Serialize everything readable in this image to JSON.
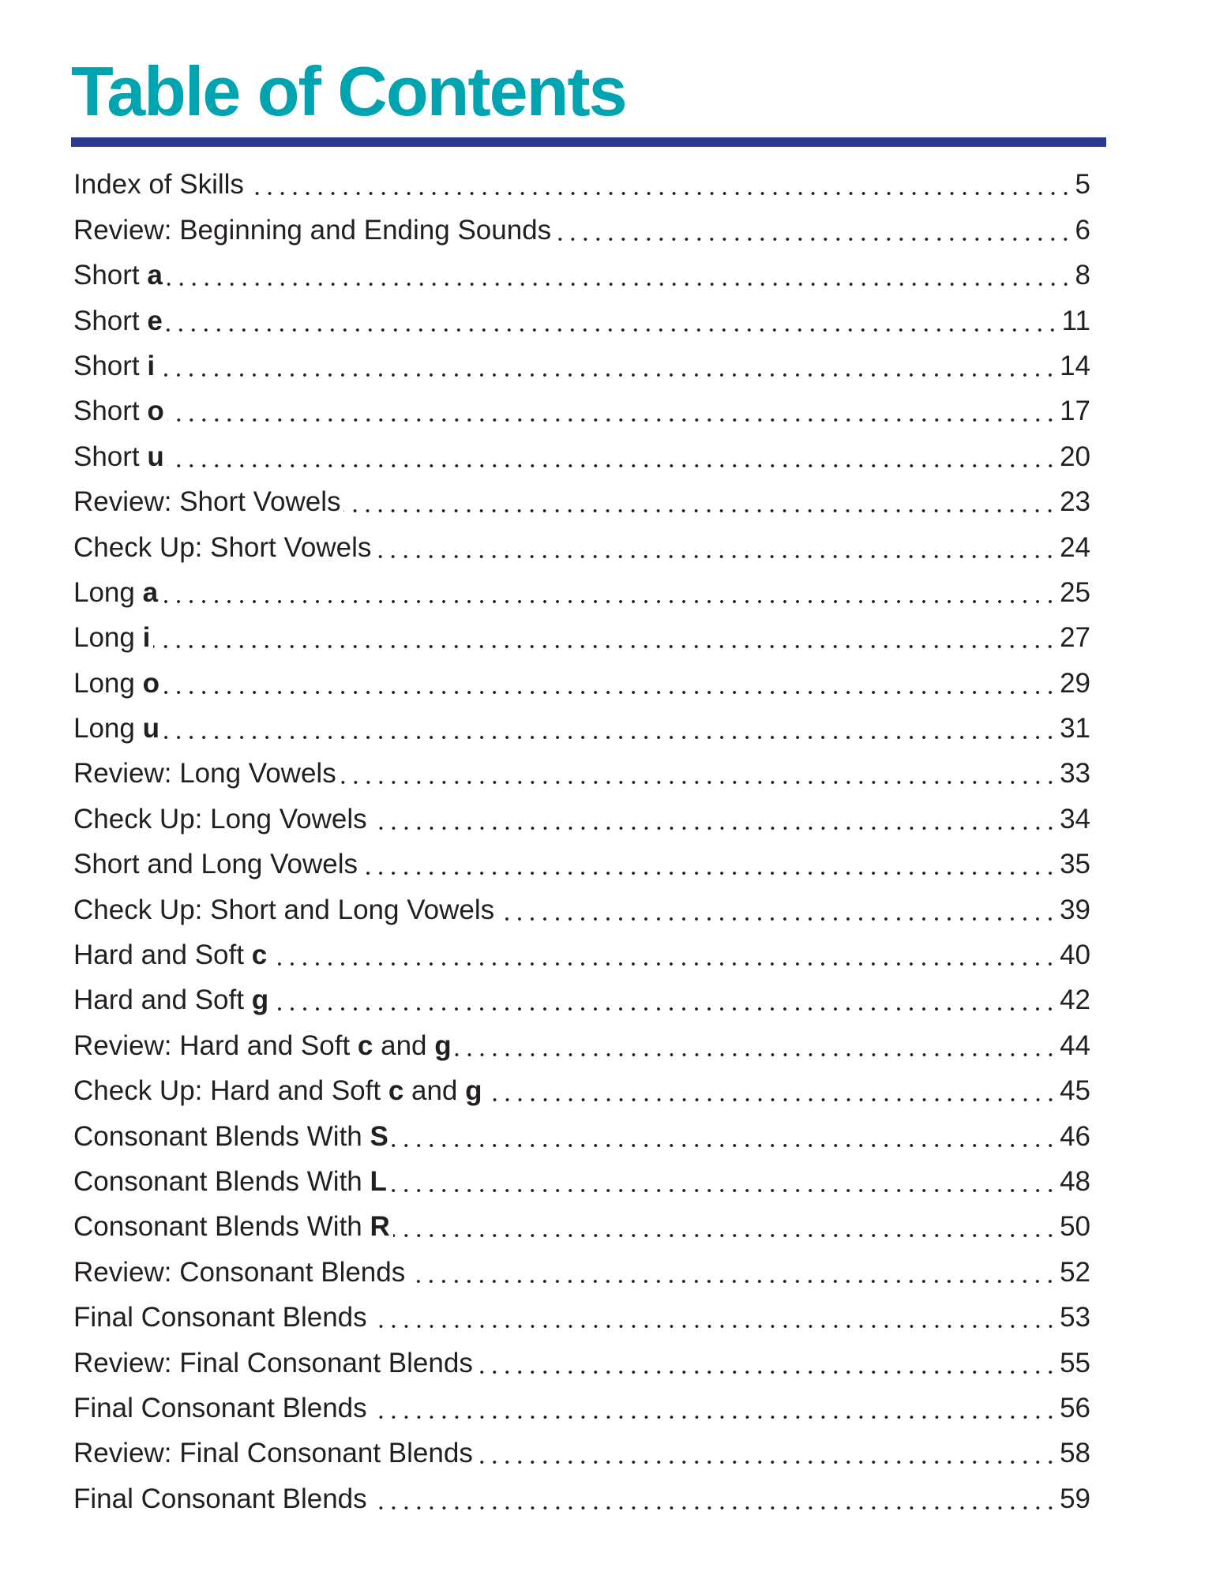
{
  "title": "Table of Contents",
  "colors": {
    "title": "#00a3b0",
    "rule": "#2b3990",
    "text": "#231f20"
  },
  "entries": [
    {
      "parts": [
        {
          "text": "Index of Skills"
        }
      ],
      "page": "5"
    },
    {
      "parts": [
        {
          "text": "Review: Beginning and Ending Sounds"
        }
      ],
      "page": "6"
    },
    {
      "parts": [
        {
          "text": "Short "
        },
        {
          "text": "a",
          "bold": true
        }
      ],
      "page": "8"
    },
    {
      "parts": [
        {
          "text": "Short "
        },
        {
          "text": "e",
          "bold": true
        }
      ],
      "page": "11"
    },
    {
      "parts": [
        {
          "text": "Short "
        },
        {
          "text": "i",
          "bold": true
        }
      ],
      "page": "14"
    },
    {
      "parts": [
        {
          "text": "Short "
        },
        {
          "text": "o",
          "bold": true
        }
      ],
      "page": "17"
    },
    {
      "parts": [
        {
          "text": "Short "
        },
        {
          "text": "u",
          "bold": true
        }
      ],
      "page": "20"
    },
    {
      "parts": [
        {
          "text": "Review: Short Vowels"
        }
      ],
      "page": "23"
    },
    {
      "parts": [
        {
          "text": "Check Up: Short Vowels"
        }
      ],
      "page": "24"
    },
    {
      "parts": [
        {
          "text": "Long "
        },
        {
          "text": "a",
          "bold": true
        }
      ],
      "page": "25"
    },
    {
      "parts": [
        {
          "text": "Long "
        },
        {
          "text": "i",
          "bold": true
        }
      ],
      "page": "27"
    },
    {
      "parts": [
        {
          "text": "Long "
        },
        {
          "text": "o",
          "bold": true
        }
      ],
      "page": "29"
    },
    {
      "parts": [
        {
          "text": "Long "
        },
        {
          "text": "u",
          "bold": true
        }
      ],
      "page": "31"
    },
    {
      "parts": [
        {
          "text": "Review: Long Vowels"
        }
      ],
      "page": "33"
    },
    {
      "parts": [
        {
          "text": "Check Up: Long Vowels"
        }
      ],
      "page": "34"
    },
    {
      "parts": [
        {
          "text": "Short and Long Vowels"
        }
      ],
      "page": "35"
    },
    {
      "parts": [
        {
          "text": "Check Up: Short and Long Vowels"
        }
      ],
      "page": "39"
    },
    {
      "parts": [
        {
          "text": "Hard and Soft "
        },
        {
          "text": "c",
          "bold": true
        }
      ],
      "page": "40"
    },
    {
      "parts": [
        {
          "text": "Hard and Soft "
        },
        {
          "text": "g",
          "bold": true
        }
      ],
      "page": "42"
    },
    {
      "parts": [
        {
          "text": "Review: Hard and Soft "
        },
        {
          "text": "c",
          "bold": true
        },
        {
          "text": " and "
        },
        {
          "text": "g",
          "bold": true
        }
      ],
      "page": "44"
    },
    {
      "parts": [
        {
          "text": "Check Up: Hard and Soft "
        },
        {
          "text": "c",
          "bold": true
        },
        {
          "text": " and "
        },
        {
          "text": "g",
          "bold": true
        }
      ],
      "page": "45"
    },
    {
      "parts": [
        {
          "text": "Consonant Blends With "
        },
        {
          "text": "S",
          "bold": true
        }
      ],
      "page": "46"
    },
    {
      "parts": [
        {
          "text": "Consonant Blends With "
        },
        {
          "text": "L",
          "bold": true
        }
      ],
      "page": "48"
    },
    {
      "parts": [
        {
          "text": "Consonant Blends With "
        },
        {
          "text": "R",
          "bold": true
        }
      ],
      "page": "50"
    },
    {
      "parts": [
        {
          "text": "Review: Consonant Blends"
        }
      ],
      "page": "52"
    },
    {
      "parts": [
        {
          "text": "Final Consonant Blends"
        }
      ],
      "page": "53"
    },
    {
      "parts": [
        {
          "text": "Review: Final Consonant Blends"
        }
      ],
      "page": "55"
    },
    {
      "parts": [
        {
          "text": "Final Consonant Blends"
        }
      ],
      "page": "56"
    },
    {
      "parts": [
        {
          "text": "Review: Final Consonant Blends"
        }
      ],
      "page": "58"
    },
    {
      "parts": [
        {
          "text": "Final Consonant Blends"
        }
      ],
      "page": "59"
    }
  ]
}
